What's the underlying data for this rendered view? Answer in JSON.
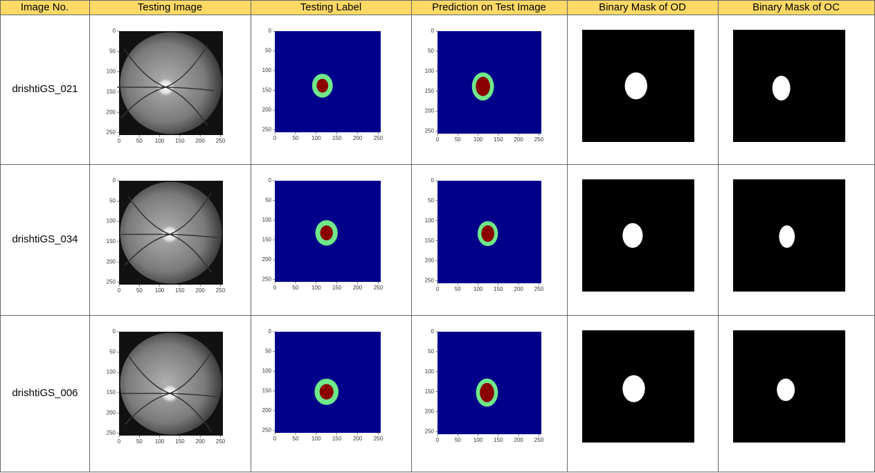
{
  "table": {
    "headers": [
      "Image No.",
      "Testing Image",
      "Testing Label",
      "Prediction on Test Image",
      "Binary Mask of OD",
      "Binary Mask of OC"
    ],
    "rows": [
      {
        "image_no": "drishtiGS_021"
      },
      {
        "image_no": "drishtiGS_034"
      },
      {
        "image_no": "drishtiGS_006"
      }
    ],
    "plot_ticks": [
      0,
      50,
      100,
      150,
      200,
      250
    ]
  }
}
